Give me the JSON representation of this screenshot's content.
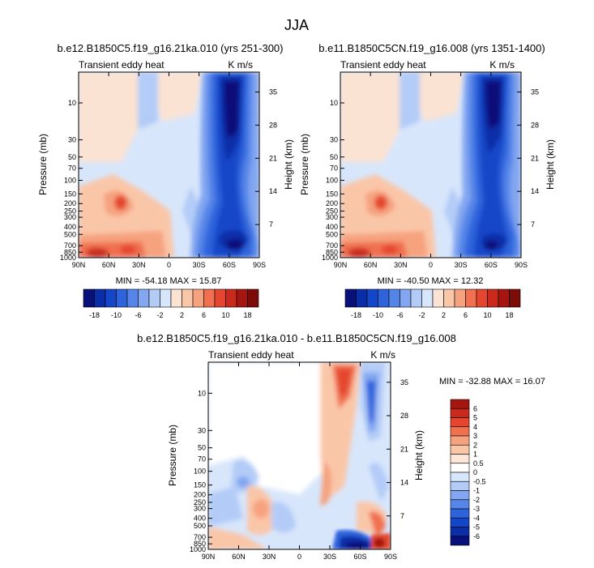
{
  "figure_title": "JJA",
  "chart_data": [
    {
      "type": "heatmap",
      "title": "b.e12.B1850C5.f19_g16.21ka.010 (yrs 251-300)",
      "left_string": "Transient eddy heat",
      "right_string": "K m/s",
      "ylabel": "Pressure (mb)",
      "ylabel_right": "Height (km)",
      "x_ticks": [
        "90N",
        "60N",
        "30N",
        "0",
        "30S",
        "60S",
        "90S"
      ],
      "y_ticks": [
        "10",
        "30",
        "50",
        "70",
        "100",
        "150",
        "200",
        "250",
        "300",
        "400",
        "500",
        "700",
        "850",
        "1000"
      ],
      "y_right_ticks": [
        "35",
        "28",
        "21",
        "14",
        "7"
      ],
      "min_max_text": "MIN = -54.18  MAX = 15.87",
      "colorbar_labels": [
        "-18",
        "-10",
        "-6",
        "-2",
        "2",
        "6",
        "10",
        "18"
      ],
      "colorbar_levels": [
        -18,
        -14,
        -10,
        -8,
        -6,
        -4,
        -2,
        0,
        2,
        4,
        6,
        8,
        10,
        14,
        18
      ],
      "colorbar_colors": [
        "#08107a",
        "#0a2ea8",
        "#1446c8",
        "#2e63dc",
        "#5585e8",
        "#82a6f0",
        "#b3ccf7",
        "#d8e6fb",
        "#fbe3d3",
        "#fac6a8",
        "#f6a27e",
        "#f07050",
        "#e4462f",
        "#c92a1c",
        "#a51610",
        "#7c0c08"
      ]
    },
    {
      "type": "heatmap",
      "title": "b.e11.B1850C5CN.f19_g16.008 (yrs 1351-1400)",
      "left_string": "Transient eddy heat",
      "right_string": "K m/s",
      "ylabel": "Pressure (mb)",
      "ylabel_right": "Height (km)",
      "x_ticks": [
        "90N",
        "60N",
        "30N",
        "0",
        "30S",
        "60S",
        "90S"
      ],
      "y_ticks": [
        "10",
        "30",
        "50",
        "70",
        "100",
        "150",
        "200",
        "250",
        "300",
        "400",
        "500",
        "700",
        "850",
        "1000"
      ],
      "y_right_ticks": [
        "35",
        "28",
        "21",
        "14",
        "7"
      ],
      "min_max_text": "MIN = -40.50  MAX = 12.32",
      "colorbar_labels": [
        "-18",
        "-10",
        "-6",
        "-2",
        "2",
        "6",
        "10",
        "18"
      ],
      "colorbar_levels": [
        -18,
        -14,
        -10,
        -8,
        -6,
        -4,
        -2,
        0,
        2,
        4,
        6,
        8,
        10,
        14,
        18
      ],
      "colorbar_colors": [
        "#08107a",
        "#0a2ea8",
        "#1446c8",
        "#2e63dc",
        "#5585e8",
        "#82a6f0",
        "#b3ccf7",
        "#d8e6fb",
        "#fbe3d3",
        "#fac6a8",
        "#f6a27e",
        "#f07050",
        "#e4462f",
        "#c92a1c",
        "#a51610",
        "#7c0c08"
      ]
    },
    {
      "type": "heatmap",
      "title": "b.e12.B1850C5.f19_g16.21ka.010 - b.e11.B1850C5CN.f19_g16.008",
      "left_string": "Transient eddy heat",
      "right_string": "K m/s",
      "ylabel": "Pressure (mb)",
      "ylabel_right": "Height (km)",
      "x_ticks": [
        "90N",
        "60N",
        "30N",
        "0",
        "30S",
        "60S",
        "90S"
      ],
      "y_ticks": [
        "10",
        "30",
        "50",
        "70",
        "100",
        "150",
        "200",
        "250",
        "300",
        "400",
        "500",
        "700",
        "850",
        "1000"
      ],
      "y_right_ticks": [
        "35",
        "28",
        "21",
        "14",
        "7"
      ],
      "min_max_text": "MIN = -32.88  MAX = 16.07",
      "colorbar_labels": [
        "6",
        "5",
        "4",
        "3",
        "2",
        "1",
        "0.5",
        "0",
        "-0.5",
        "-1",
        "-2",
        "-3",
        "-4",
        "-5",
        "-6"
      ],
      "colorbar_colors": [
        "#a51610",
        "#c92a1c",
        "#e4462f",
        "#f07050",
        "#f6a27e",
        "#fac6a8",
        "#fde6d8",
        "#ffffff",
        "#d8e6fb",
        "#b3ccf7",
        "#82a6f0",
        "#5585e8",
        "#2e63dc",
        "#1446c8",
        "#0a2ea8",
        "#08107a"
      ]
    }
  ]
}
